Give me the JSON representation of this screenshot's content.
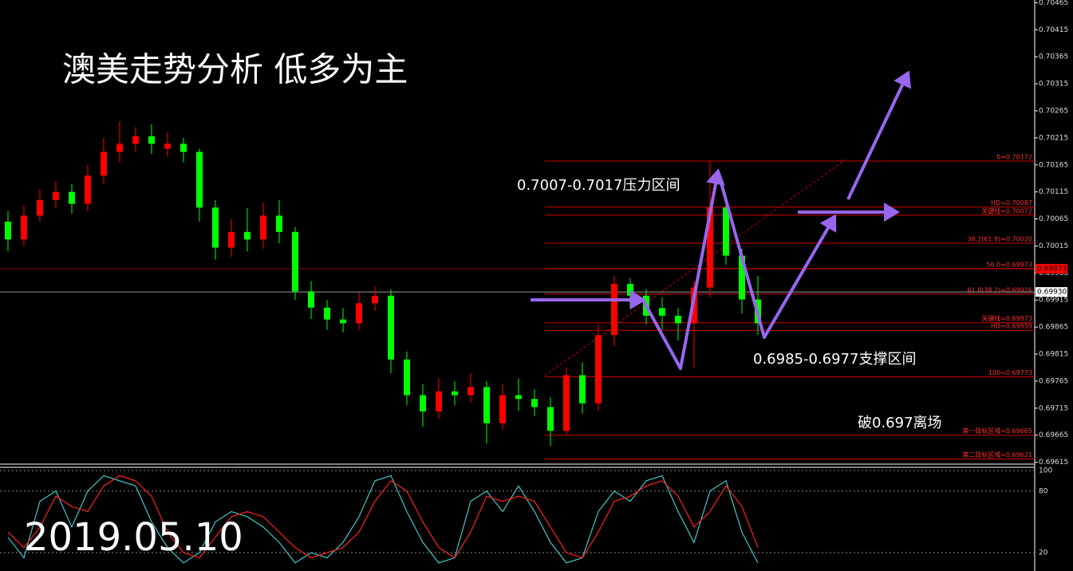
{
  "chart_data": [
    {
      "type": "candlestick",
      "title": "澳美走势分析  低多为主",
      "annotations": [
        "0.7007-0.7017压力区间",
        "0.6985-0.6977支撑区间",
        "破0.697离场",
        "2019.05.10"
      ],
      "up_color": "#ff0000",
      "down_color": "#00ff00",
      "open": [
        0.7006,
        0.70027,
        0.70071,
        0.701,
        0.70115,
        0.70093,
        0.70145,
        0.70189,
        0.70204,
        0.70218,
        0.70195,
        0.70204,
        0.70189,
        0.70086,
        0.70012,
        0.70041,
        0.70027,
        0.70071,
        0.70041,
        0.69931,
        0.69901,
        0.69879,
        0.69872,
        0.69909,
        0.69923,
        0.69805,
        0.69739,
        0.69709,
        0.69746,
        0.69739,
        0.69754,
        0.69687,
        0.69739,
        0.69732,
        0.69717,
        0.69673,
        0.69776,
        0.69724,
        0.6985,
        0.69945,
        0.69923,
        0.699,
        0.69886,
        0.69872,
        0.69938,
        0.70086,
        0.69997,
        0.69916
      ],
      "high": [
        0.7008,
        0.7009,
        0.7012,
        0.70135,
        0.7013,
        0.70165,
        0.70215,
        0.70245,
        0.70235,
        0.7024,
        0.70225,
        0.70215,
        0.70195,
        0.701,
        0.70065,
        0.70085,
        0.70095,
        0.701,
        0.7005,
        0.6995,
        0.69915,
        0.699,
        0.6993,
        0.6994,
        0.69935,
        0.6982,
        0.6976,
        0.6977,
        0.69765,
        0.6978,
        0.69765,
        0.6976,
        0.6977,
        0.6975,
        0.69735,
        0.6979,
        0.698,
        0.6987,
        0.6996,
        0.69955,
        0.69935,
        0.6992,
        0.699,
        0.6995,
        0.70172,
        0.7011,
        0.7001,
        0.6996
      ],
      "low": [
        0.70005,
        0.70015,
        0.7006,
        0.70085,
        0.70075,
        0.7008,
        0.7013,
        0.7017,
        0.7019,
        0.70185,
        0.7018,
        0.7017,
        0.7006,
        0.6999,
        0.69995,
        0.70005,
        0.7001,
        0.7002,
        0.69915,
        0.6988,
        0.6986,
        0.69855,
        0.6986,
        0.69895,
        0.6978,
        0.6972,
        0.6968,
        0.69695,
        0.6972,
        0.69725,
        0.6965,
        0.69675,
        0.6971,
        0.697,
        0.69645,
        0.69665,
        0.69705,
        0.6971,
        0.6983,
        0.699,
        0.6987,
        0.6986,
        0.6984,
        0.6979,
        0.6992,
        0.6998,
        0.6989,
        0.6985
      ],
      "close": [
        0.70027,
        0.70071,
        0.701,
        0.70115,
        0.70093,
        0.70145,
        0.70189,
        0.70204,
        0.70218,
        0.70204,
        0.70204,
        0.70189,
        0.70086,
        0.70012,
        0.70041,
        0.70027,
        0.70071,
        0.70041,
        0.69931,
        0.69901,
        0.69879,
        0.69872,
        0.69909,
        0.69923,
        0.69805,
        0.69739,
        0.69709,
        0.69746,
        0.69739,
        0.69754,
        0.69687,
        0.69739,
        0.69732,
        0.69717,
        0.69673,
        0.69776,
        0.69724,
        0.6985,
        0.69945,
        0.69923,
        0.69886,
        0.69886,
        0.69872,
        0.69938,
        0.70086,
        0.69997,
        0.69916,
        0.69872
      ],
      "ylim": [
        0.6961,
        0.7047
      ],
      "yticks": [
        0.70465,
        0.70415,
        0.70365,
        0.70315,
        0.70265,
        0.70215,
        0.70165,
        0.70115,
        0.70065,
        0.70015,
        0.69965,
        0.69915,
        0.69865,
        0.69815,
        0.69765,
        0.69715,
        0.69665,
        0.69615
      ],
      "levels": [
        {
          "value": 0.70172,
          "label": "0=0.70172"
        },
        {
          "value": 0.70087,
          "label": "HD=0.70087"
        },
        {
          "value": 0.70072,
          "label": "关键线=0.70072"
        },
        {
          "value": 0.7002,
          "label": "38.2(61.8)=0.70020"
        },
        {
          "value": 0.69973,
          "label": "50.0=0.69973"
        },
        {
          "value": 0.69926,
          "label": "61.8(38.2)=0.69926"
        },
        {
          "value": 0.69873,
          "label": "关键线=0.69873"
        },
        {
          "value": 0.69859,
          "label": "HD=0.69859"
        },
        {
          "value": 0.69773,
          "label": "100=0.69773"
        },
        {
          "value": 0.69665,
          "label": "第一目标区域=0.69665"
        },
        {
          "value": 0.69621,
          "label": "第二目标区域=0.69621"
        }
      ],
      "level_color": "#d00000",
      "price_lines": [
        {
          "value": 0.69973,
          "label": "0.69973",
          "color": "#ff0000"
        },
        {
          "value": 0.6993,
          "label": "0.69930",
          "color": "#ffffff"
        }
      ]
    },
    {
      "type": "line",
      "series": [
        {
          "color": "#40c8c8",
          "values": [
            35,
            15,
            70,
            80,
            45,
            80,
            95,
            90,
            85,
            50,
            25,
            10,
            20,
            50,
            60,
            55,
            45,
            30,
            10,
            20,
            15,
            30,
            55,
            90,
            95,
            60,
            30,
            10,
            15,
            70,
            80,
            60,
            85,
            60,
            30,
            10,
            15,
            60,
            80,
            70,
            90,
            95,
            60,
            30,
            80,
            90,
            40,
            10
          ]
        },
        {
          "color": "#ff2020",
          "values": [
            40,
            25,
            45,
            75,
            65,
            60,
            85,
            95,
            90,
            75,
            40,
            20,
            15,
            35,
            55,
            60,
            55,
            40,
            25,
            15,
            20,
            25,
            40,
            70,
            90,
            80,
            50,
            25,
            15,
            40,
            75,
            70,
            75,
            70,
            45,
            20,
            15,
            40,
            70,
            75,
            85,
            90,
            75,
            45,
            60,
            85,
            65,
            25
          ]
        }
      ],
      "ylim": [
        0,
        100
      ],
      "yticks": [
        100,
        80,
        20
      ]
    }
  ]
}
